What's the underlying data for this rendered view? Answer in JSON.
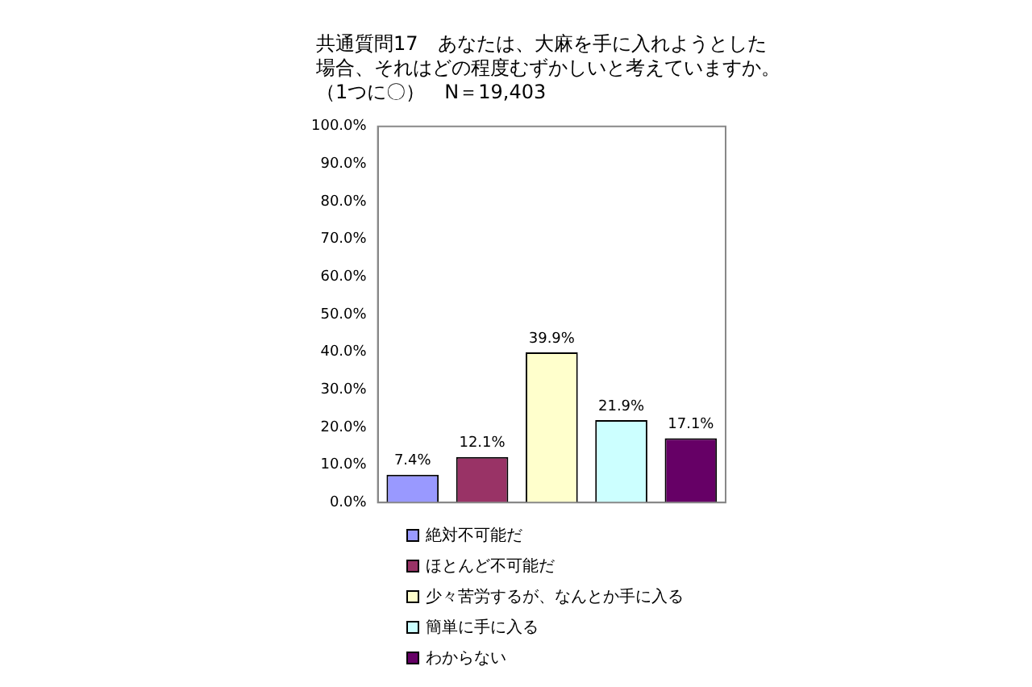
{
  "chart_data": {
    "type": "bar",
    "title": "共通質問17　あなたは、大麻を手に入れようとした場合、それはどの程度むずかしいと考えていますか。（1つに〇）　N＝19,403",
    "categories": [
      null
    ],
    "series": [
      {
        "name": "絶対不可能だ",
        "color": "#9999ff",
        "values": [
          7.4
        ]
      },
      {
        "name": "ほとんど不可能だ",
        "color": "#993366",
        "values": [
          12.1
        ]
      },
      {
        "name": "少々苦労するが、なんとか手に入る",
        "color": "#ffffcc",
        "values": [
          39.9
        ]
      },
      {
        "name": "簡単に手に入る",
        "color": "#ccffff",
        "values": [
          21.9
        ]
      },
      {
        "name": "わからない",
        "color": "#660066",
        "values": [
          17.1
        ]
      }
    ],
    "ylim": [
      0,
      100
    ],
    "yticks": [
      {
        "value": 0,
        "label": "0.0%"
      },
      {
        "value": 10,
        "label": "10.0%"
      },
      {
        "value": 20,
        "label": "20.0%"
      },
      {
        "value": 30,
        "label": "30.0%"
      },
      {
        "value": 40,
        "label": "40.0%"
      },
      {
        "value": 50,
        "label": "50.0%"
      },
      {
        "value": 60,
        "label": "60.0%"
      },
      {
        "value": 70,
        "label": "70.0%"
      },
      {
        "value": 80,
        "label": "80.0%"
      },
      {
        "value": 90,
        "label": "90.0%"
      },
      {
        "value": 100,
        "label": "100.0%"
      }
    ],
    "value_labels": [
      "7.4%",
      "12.1%",
      "39.9%",
      "21.9%",
      "17.1%"
    ],
    "legend": "bottom",
    "grid": false
  }
}
